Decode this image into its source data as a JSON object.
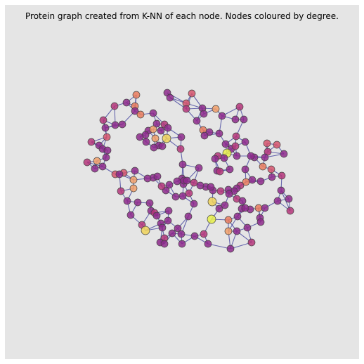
{
  "figure": {
    "title": "Protein graph created from K-NN of each node. Nodes coloured by degree.",
    "background_color": "#e5e5e5",
    "edge_color": "#3a3a9a",
    "node_edge_color": "#444444",
    "degree_colormap": [
      "#8e2a8c",
      "#b5367a",
      "#d6556d",
      "#ea7d5e",
      "#f2a06a",
      "#f0d35a",
      "#e8f04a"
    ]
  },
  "graph": {
    "nodes": [],
    "edges": []
  }
}
